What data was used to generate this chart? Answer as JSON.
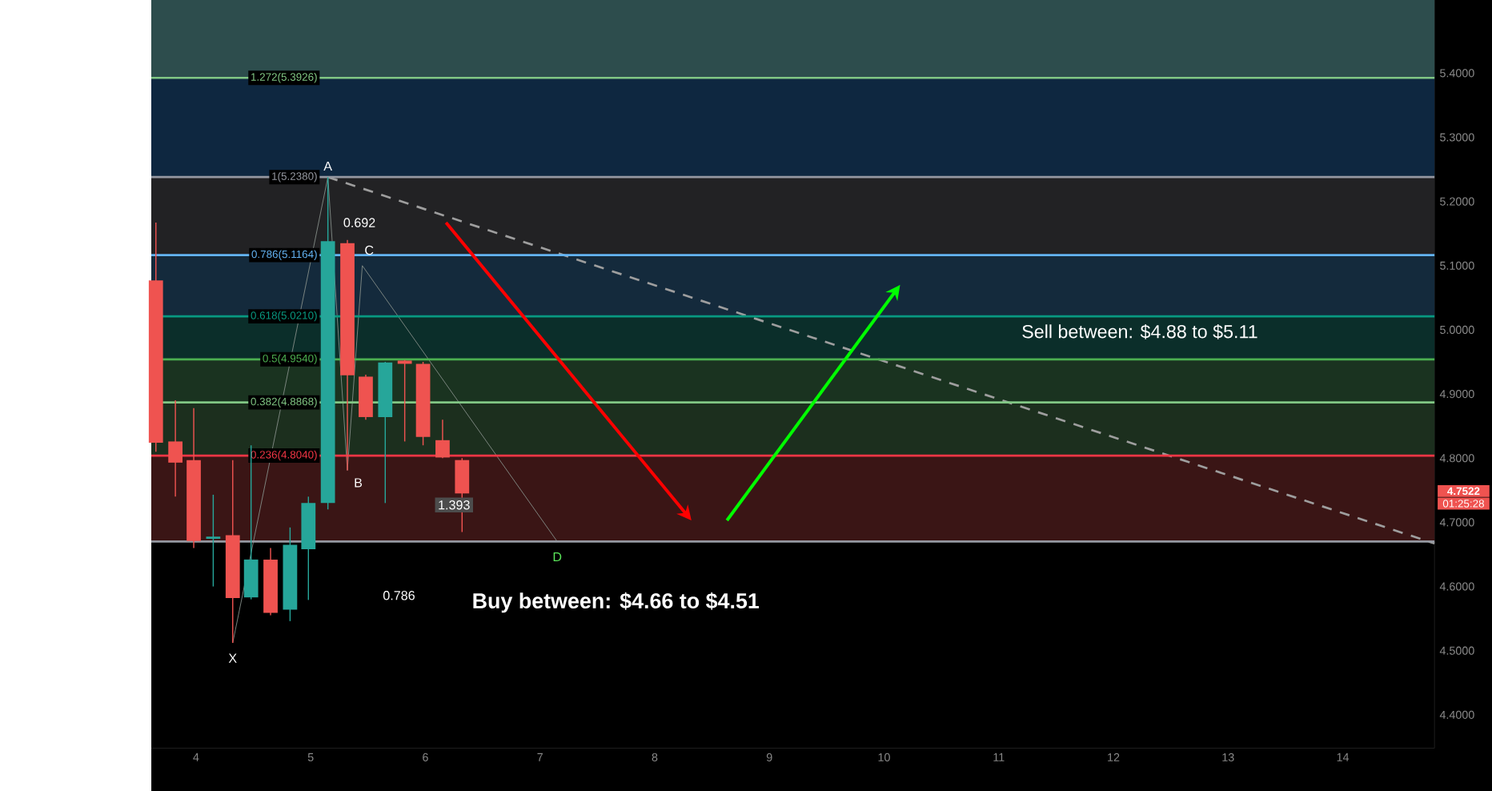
{
  "chart_data": {
    "type": "candlestick",
    "x": [
      3.65,
      3.82,
      3.98,
      4.15,
      4.32,
      4.48,
      4.65,
      4.82,
      4.98,
      5.15,
      5.32,
      5.48,
      5.65,
      5.82,
      5.98,
      6.15,
      6.32
    ],
    "ohlc": [
      [
        5.077,
        5.167,
        4.81,
        4.824
      ],
      [
        4.826,
        4.89,
        4.74,
        4.793
      ],
      [
        4.797,
        4.878,
        4.66,
        4.671
      ],
      [
        4.676,
        4.743,
        4.6,
        4.676
      ],
      [
        4.68,
        4.797,
        4.512,
        4.582
      ],
      [
        4.583,
        4.82,
        4.58,
        4.642
      ],
      [
        4.642,
        4.66,
        4.555,
        4.559
      ],
      [
        4.564,
        4.692,
        4.546,
        4.665
      ],
      [
        4.658,
        4.74,
        4.579,
        4.73
      ],
      [
        4.73,
        5.238,
        4.72,
        5.138
      ],
      [
        5.135,
        5.14,
        4.781,
        4.929
      ],
      [
        4.927,
        4.93,
        4.86,
        4.864
      ],
      [
        4.864,
        4.95,
        4.73,
        4.949
      ],
      [
        4.952,
        4.953,
        4.826,
        4.947
      ],
      [
        4.947,
        4.95,
        4.82,
        4.833
      ],
      [
        4.828,
        4.86,
        4.8,
        4.801
      ],
      [
        4.797,
        4.8,
        4.685,
        4.745
      ]
    ],
    "colors": [
      "#ef5350",
      "#ef5350",
      "#ef5350",
      "#26a69a",
      "#ef5350",
      "#26a69a",
      "#ef5350",
      "#26a69a",
      "#26a69a",
      "#26a69a",
      "#ef5350",
      "#ef5350",
      "#26a69a",
      "#ef5350",
      "#ef5350",
      "#ef5350",
      "#ef5350"
    ],
    "series": [
      {
        "type": "line",
        "color": "#9e9e9e",
        "line_style": "dashed",
        "x": [
          5.15,
          14.8
        ],
        "values": [
          5.238,
          4.667
        ]
      },
      {
        "type": "line",
        "color": "#858d88",
        "line_style": "solid",
        "x": [
          4.32,
          5.15,
          5.32,
          5.45,
          7.15
        ],
        "values": [
          4.512,
          5.238,
          4.781,
          5.1,
          4.67
        ]
      }
    ],
    "xlim": [
      3.61,
      14.8
    ],
    "ylim": [
      4.348,
      5.514
    ],
    "xticks": [
      4,
      5,
      6,
      7,
      8,
      9,
      10,
      11,
      12,
      13,
      14
    ],
    "yticks": [
      {
        "value": 4.4,
        "label": "4.4000"
      },
      {
        "value": 4.5,
        "label": "4.5000"
      },
      {
        "value": 4.6,
        "label": "4.6000"
      },
      {
        "value": 4.7,
        "label": "4.7000"
      },
      {
        "value": 4.8,
        "label": "4.8000"
      },
      {
        "value": 4.9,
        "label": "4.9000"
      },
      {
        "value": 5.0,
        "label": "5.0000"
      },
      {
        "value": 5.1,
        "label": "5.1000"
      },
      {
        "value": 5.2,
        "label": "5.2000"
      },
      {
        "value": 5.3,
        "label": "5.3000"
      },
      {
        "value": 5.4,
        "label": "5.4000"
      }
    ],
    "bands": [
      {
        "axis": "y",
        "from": 5.3926,
        "to": 5.514,
        "color": "#2d4d4d"
      },
      {
        "axis": "y",
        "from": 5.238,
        "to": 5.3926,
        "color": "#0e2740"
      },
      {
        "axis": "y",
        "from": 5.1164,
        "to": 5.238,
        "color": "#222224"
      },
      {
        "axis": "y",
        "from": 5.021,
        "to": 5.1164,
        "color": "#142a3c"
      },
      {
        "axis": "y",
        "from": 4.954,
        "to": 5.021,
        "color": "#0b2e2a"
      },
      {
        "axis": "y",
        "from": 4.8868,
        "to": 4.954,
        "color": "#1a3320"
      },
      {
        "axis": "y",
        "from": 4.804,
        "to": 4.8868,
        "color": "#1c2f1e"
      },
      {
        "axis": "y",
        "from": 4.67,
        "to": 4.804,
        "color": "#3a1515"
      }
    ],
    "ref_lines": [
      {
        "axis": "y",
        "value": 5.3926,
        "label": "1.272(5.3926)",
        "color": "#81c784"
      },
      {
        "axis": "y",
        "value": 5.238,
        "label": "1(5.2380)",
        "color": "#9598a1"
      },
      {
        "axis": "y",
        "value": 5.1164,
        "label": "0.786(5.1164)",
        "color": "#64b5f6"
      },
      {
        "axis": "y",
        "value": 5.021,
        "label": "0.618(5.0210)",
        "color": "#089981"
      },
      {
        "axis": "y",
        "value": 4.954,
        "label": "0.5(4.9540)",
        "color": "#4caf50"
      },
      {
        "axis": "y",
        "value": 4.8868,
        "label": "0.382(4.8868)",
        "color": "#81c784"
      },
      {
        "axis": "y",
        "value": 4.804,
        "label": "0.236(4.8040)",
        "color": "#f23645"
      },
      {
        "axis": "y",
        "value": 4.67,
        "color": "#9598a1"
      }
    ],
    "annotations": [
      {
        "text": "X",
        "x": 4.32,
        "y": 4.512
      },
      {
        "text": "A",
        "x": 5.15,
        "y": 5.238
      },
      {
        "text": "B",
        "x": 5.32,
        "y": 4.781
      },
      {
        "text": "C",
        "x": 5.45,
        "y": 5.1
      },
      {
        "text": "D",
        "x": 7.15,
        "y": 4.67
      },
      {
        "text": "0.692",
        "x": 5.24,
        "y": 5.167
      },
      {
        "text": "1.393",
        "x": 6.25,
        "y": 4.727
      },
      "0.786",
      "Buy between: $4.66 to $4.51",
      "Sell between: $4.88 to $5.11",
      "4.7522",
      "01:25:28"
    ]
  }
}
